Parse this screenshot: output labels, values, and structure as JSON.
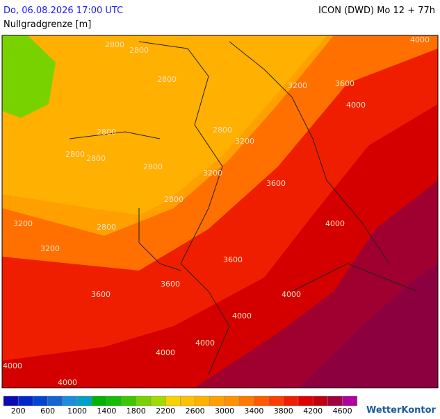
{
  "header": {
    "datetime": "Do, 06.08.2026 17:00 UTC",
    "model": "ICON (DWD) Mo 12 + 77h",
    "parameter": "Nullgradgrenze [m]"
  },
  "map": {
    "contour_labels": [
      "2800",
      "2800",
      "2800",
      "2800",
      "2800",
      "2800",
      "2800",
      "2800",
      "2800",
      "2800",
      "3200",
      "3600",
      "4000",
      "4000",
      "3200",
      "3200",
      "3600",
      "3200",
      "3200",
      "4000",
      "3600",
      "3600",
      "3600",
      "4000",
      "4000",
      "4000",
      "4000",
      "4000",
      "4000"
    ]
  },
  "legend": {
    "colors": [
      "#0a0ab4",
      "#0028c8",
      "#0046d2",
      "#1464d2",
      "#1e8cdc",
      "#00a0c8",
      "#00b400",
      "#14be00",
      "#3cc800",
      "#78d200",
      "#a0dc00",
      "#f5d200",
      "#ffc000",
      "#ffb000",
      "#ffa000",
      "#ff9000",
      "#ff7800",
      "#ff5a00",
      "#ff3c00",
      "#f01e00",
      "#e00000",
      "#c00010",
      "#a00040",
      "#b000a0"
    ],
    "labels": [
      "200",
      "600",
      "1000",
      "1400",
      "1800",
      "2200",
      "2600",
      "3000",
      "3400",
      "3800",
      "4200",
      "4600"
    ]
  },
  "logo": "WetterKontor"
}
